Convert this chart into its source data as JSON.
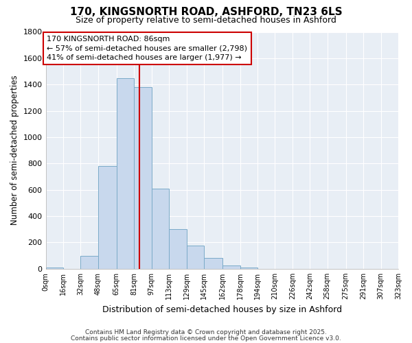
{
  "title": "170, KINGSNORTH ROAD, ASHFORD, TN23 6LS",
  "subtitle": "Size of property relative to semi-detached houses in Ashford",
  "xlabel": "Distribution of semi-detached houses by size in Ashford",
  "ylabel": "Number of semi-detached properties",
  "bar_color": "#c8d8ed",
  "bar_edge_color": "#7aaac8",
  "annotation_title": "170 KINGSNORTH ROAD: 86sqm",
  "annotation_line1": "← 57% of semi-detached houses are smaller (2,798)",
  "annotation_line2": "41% of semi-detached houses are larger (1,977) →",
  "property_size": 86,
  "vline_color": "#cc0000",
  "bin_edges": [
    0,
    16,
    32,
    48,
    65,
    81,
    97,
    113,
    129,
    145,
    162,
    178,
    194,
    210,
    226,
    242,
    258,
    275,
    291,
    307,
    323
  ],
  "bin_counts": [
    10,
    0,
    100,
    780,
    1450,
    1380,
    610,
    300,
    175,
    80,
    25,
    10,
    0,
    0,
    0,
    0,
    0,
    0,
    0,
    0
  ],
  "ylim": [
    0,
    1800
  ],
  "yticks": [
    0,
    200,
    400,
    600,
    800,
    1000,
    1200,
    1400,
    1600,
    1800
  ],
  "xtick_labels": [
    "0sqm",
    "16sqm",
    "32sqm",
    "48sqm",
    "65sqm",
    "81sqm",
    "97sqm",
    "113sqm",
    "129sqm",
    "145sqm",
    "162sqm",
    "178sqm",
    "194sqm",
    "210sqm",
    "226sqm",
    "242sqm",
    "258sqm",
    "275sqm",
    "291sqm",
    "307sqm",
    "323sqm"
  ],
  "background_color": "#ffffff",
  "plot_bg_color": "#e8eef5",
  "grid_color": "#ffffff",
  "footer_line1": "Contains HM Land Registry data © Crown copyright and database right 2025.",
  "footer_line2": "Contains public sector information licensed under the Open Government Licence v3.0."
}
